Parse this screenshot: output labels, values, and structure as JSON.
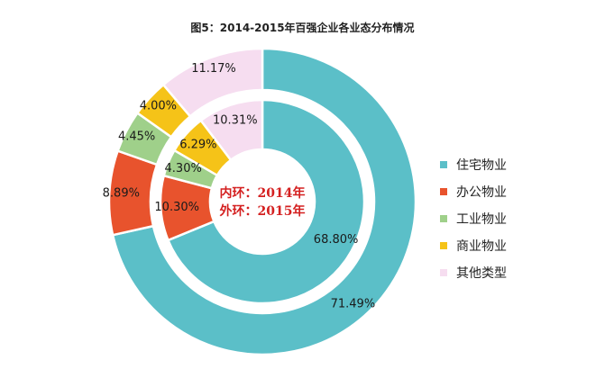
{
  "chart_data": {
    "type": "pie",
    "title": "图5：2014-2015年百强企业各业态分布情况",
    "categories": [
      "住宅物业",
      "办公物业",
      "工业物业",
      "商业物业",
      "其他类型"
    ],
    "colors": [
      "#5bbfc8",
      "#e8532d",
      "#9fd08a",
      "#f5c318",
      "#f6ddf0"
    ],
    "series": [
      {
        "name": "2014年",
        "ring": "inner",
        "values": [
          68.8,
          10.3,
          4.3,
          6.29,
          10.31
        ],
        "labels": [
          "68.80%",
          "10.30%",
          "4.30%",
          "6.29%",
          "10.31%"
        ]
      },
      {
        "name": "2015年",
        "ring": "outer",
        "values": [
          71.49,
          8.89,
          4.45,
          4.0,
          11.17
        ],
        "labels": [
          "71.49%",
          "8.89%",
          "4.45%",
          "4.00%",
          "11.17%"
        ]
      }
    ],
    "center_note": [
      "内环：2014年",
      "外环：2015年"
    ],
    "center_note_color": "#d42020",
    "legend_position": "right"
  }
}
